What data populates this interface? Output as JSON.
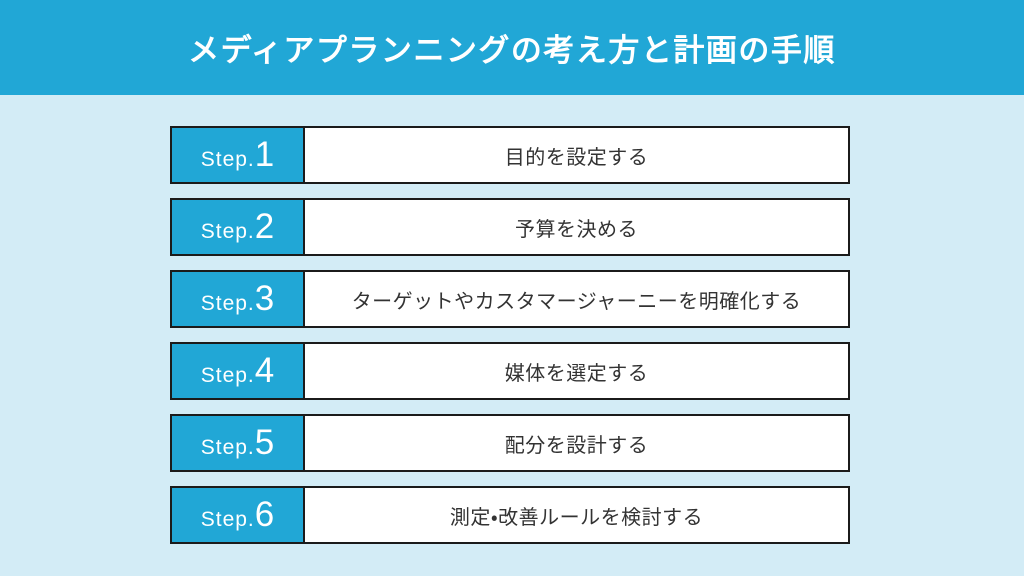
{
  "header": {
    "title": "メディアプランニングの考え方と計画の手順"
  },
  "steps": [
    {
      "label_prefix": "Step.",
      "number": "1",
      "text": "目的を設定する"
    },
    {
      "label_prefix": "Step.",
      "number": "2",
      "text": "予算を決める"
    },
    {
      "label_prefix": "Step.",
      "number": "3",
      "text": "ターゲットやカスタマージャーニーを明確化する"
    },
    {
      "label_prefix": "Step.",
      "number": "4",
      "text": "媒体を選定する"
    },
    {
      "label_prefix": "Step.",
      "number": "5",
      "text": "配分を設計する"
    },
    {
      "label_prefix": "Step.",
      "number": "6",
      "text": "測定・改善ルールを検討する"
    }
  ],
  "colors": {
    "accent_cyan": "#21a7d6",
    "background_light_blue": "#d3ecf6",
    "border_dark": "#1b1b1b",
    "step_text": "#333333",
    "header_text": "#ffffff"
  }
}
